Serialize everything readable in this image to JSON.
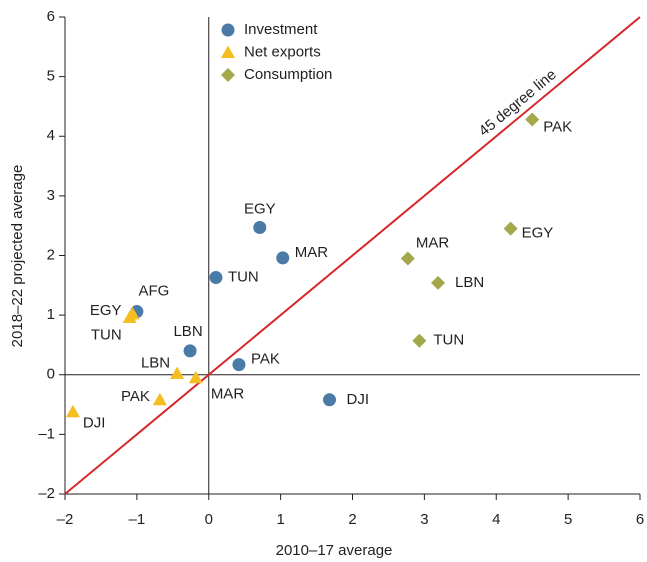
{
  "chart_data": {
    "type": "scatter",
    "x_label": "2010–17 average",
    "y_label": "2018–22 projected average",
    "xlim": [
      -2,
      6
    ],
    "ylim": [
      -2,
      6
    ],
    "xticks": [
      {
        "value": -2,
        "label": "–2"
      },
      {
        "value": -1,
        "label": "–1"
      },
      0,
      1,
      2,
      3,
      4,
      5,
      6
    ],
    "yticks": [
      {
        "value": -2,
        "label": "–2"
      },
      {
        "value": -1,
        "label": "–1"
      },
      0,
      1,
      2,
      3,
      4,
      5,
      6
    ],
    "reference_line": {
      "label": "45 degree line",
      "color": "#d9262b"
    },
    "legend": "top-left",
    "series": [
      {
        "name": "Investment",
        "color": "#4a7aa6",
        "marker": "circle",
        "labels": [
          "AFG",
          "EGY",
          "MAR",
          "TUN",
          "LBN",
          "PAK",
          "DJI"
        ],
        "x": [
          -1.0,
          0.71,
          1.03,
          0.1,
          -0.26,
          0.42,
          1.68
        ],
        "values": [
          1.06,
          2.47,
          1.96,
          1.63,
          0.4,
          0.17,
          -0.42
        ]
      },
      {
        "name": "Net exports",
        "color": "#f5bd1f",
        "marker": "triangle",
        "labels": [
          "EGY",
          "TUN",
          "LBN",
          "MAR",
          "PAK",
          "DJI"
        ],
        "x": [
          -1.06,
          -1.1,
          -0.44,
          -0.18,
          -0.68,
          -1.89
        ],
        "values": [
          1.02,
          0.96,
          0.02,
          -0.05,
          -0.42,
          -0.62
        ]
      },
      {
        "name": "Consumption",
        "color": "#a3a84a",
        "marker": "diamond",
        "labels": [
          "PAK",
          "EGY",
          "MAR",
          "LBN",
          "TUN"
        ],
        "x": [
          4.5,
          4.2,
          2.77,
          3.19,
          2.93
        ],
        "values": [
          4.28,
          2.45,
          1.95,
          1.54,
          0.57
        ]
      }
    ]
  }
}
